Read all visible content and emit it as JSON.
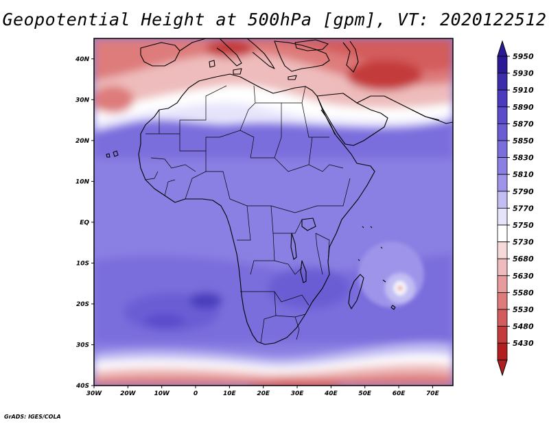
{
  "map": {
    "title": "Geopotential Height at 500hPa [gpm], VT: 2020122512",
    "variable": "Geopotential Height",
    "level": "500hPa",
    "units": "gpm",
    "valid_time": "2020122512",
    "region": {
      "lon_range": [
        -30,
        76
      ],
      "lat_range": [
        -40,
        45
      ]
    },
    "longitude_ticks": [
      {
        "value": -30,
        "label": "30W"
      },
      {
        "value": -20,
        "label": "20W"
      },
      {
        "value": -10,
        "label": "10W"
      },
      {
        "value": 0,
        "label": "0"
      },
      {
        "value": 10,
        "label": "10E"
      },
      {
        "value": 20,
        "label": "20E"
      },
      {
        "value": 30,
        "label": "30E"
      },
      {
        "value": 40,
        "label": "40E"
      },
      {
        "value": 50,
        "label": "50E"
      },
      {
        "value": 60,
        "label": "60E"
      },
      {
        "value": 70,
        "label": "70E"
      }
    ],
    "latitude_ticks": [
      {
        "value": 40,
        "label": "40N"
      },
      {
        "value": 30,
        "label": "30N"
      },
      {
        "value": 20,
        "label": "20N"
      },
      {
        "value": 10,
        "label": "10N"
      },
      {
        "value": 0,
        "label": "EQ"
      },
      {
        "value": -10,
        "label": "10S"
      },
      {
        "value": -20,
        "label": "20S"
      },
      {
        "value": -30,
        "label": "30S"
      },
      {
        "value": -40,
        "label": "40S"
      }
    ]
  },
  "colorbar": {
    "levels": [
      "5950",
      "5930",
      "5910",
      "5890",
      "5870",
      "5850",
      "5830",
      "5810",
      "5790",
      "5770",
      "5750",
      "5730",
      "5680",
      "5630",
      "5580",
      "5530",
      "5480",
      "5430"
    ],
    "colors_top_to_bottom": [
      "#2a1a96",
      "#3b2dab",
      "#4a3cbd",
      "#5a4ccb",
      "#6a5dd4",
      "#7a6ddc",
      "#8a7fe2",
      "#9e94ea",
      "#c2bdf3",
      "#e6e4fb",
      "#ffffff",
      "#f6dada",
      "#eebcbc",
      "#e69c9c",
      "#de7b7b",
      "#d35c5c",
      "#c43b3b",
      "#b21e1e"
    ]
  },
  "credit": "GrADS: IGES/COLA"
}
